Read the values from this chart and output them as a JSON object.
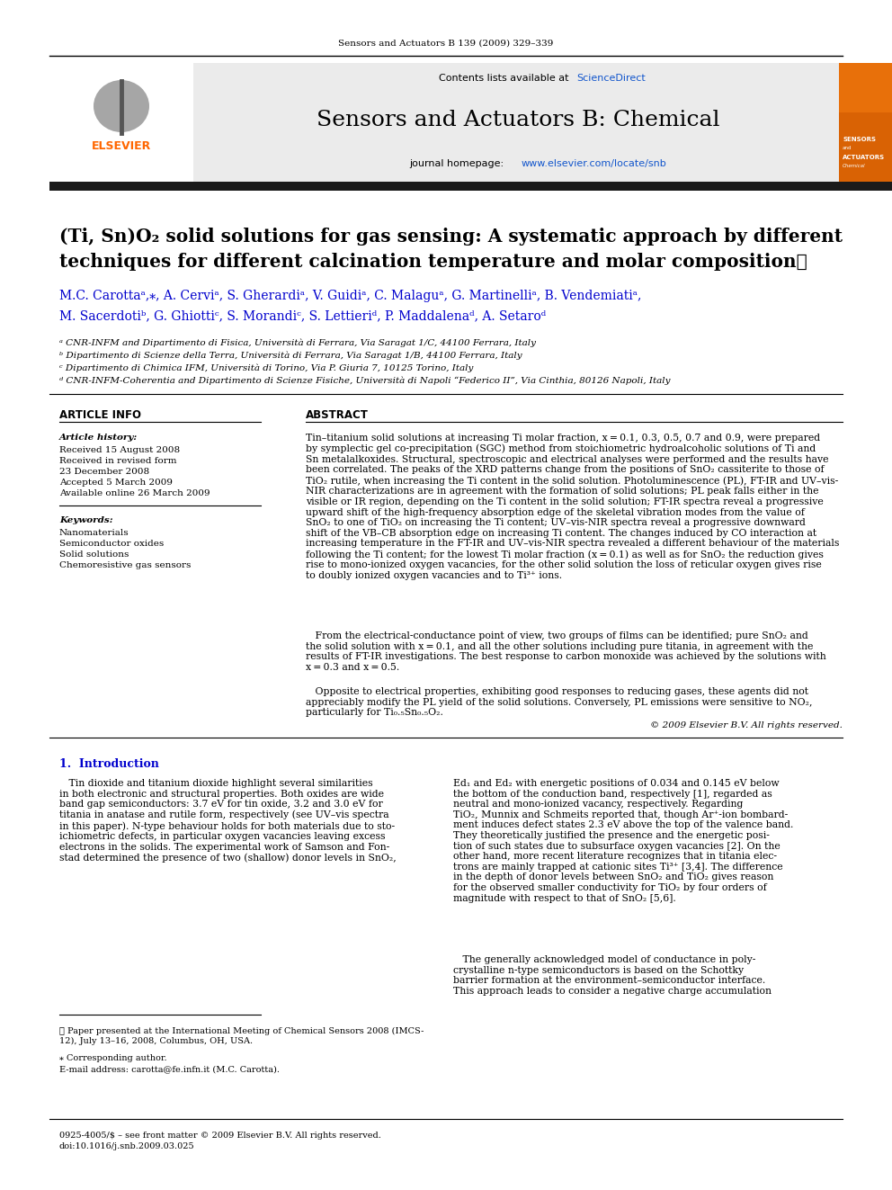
{
  "page_header": "Sensors and Actuators B 139 (2009) 329–339",
  "journal_name": "Sensors and Actuators B: Chemical",
  "contents_text": "Contents lists available at ScienceDirect",
  "journal_homepage": "journal homepage: www.elsevier.com/locate/snb",
  "article_title_line1": "(Ti, Sn)O₂ solid solutions for gas sensing: A systematic approach by different",
  "article_title_line2": "techniques for different calcination temperature and molar composition☆",
  "authors_line1": "M.C. Carottaᵃ,⁎, A. Cerviᵃ, S. Gherardiᵃ, V. Guidiᵃ, C. Malaguᵃ, G. Martinelliᵃ, B. Vendemiatiᵃ,",
  "authors_line2": "M. Sacerdotiᵇ, G. Ghiottiᶜ, S. Morandiᶜ, S. Lettieriᵈ, P. Maddalenaᵈ, A. Setaroᵈ",
  "affil_a": "ᵃ CNR-INFM and Dipartimento di Fisica, Università di Ferrara, Via Saragat 1/C, 44100 Ferrara, Italy",
  "affil_b": "ᵇ Dipartimento di Scienze della Terra, Università di Ferrara, Via Saragat 1/B, 44100 Ferrara, Italy",
  "affil_c": "ᶜ Dipartimento di Chimica IFM, Università di Torino, Via P. Giuria 7, 10125 Torino, Italy",
  "affil_d": "ᵈ CNR-INFM-Coherentia and Dipartimento di Scienze Fisiche, Università di Napoli “Federico II”, Via Cinthia, 80126 Napoli, Italy",
  "article_info_title": "ARTICLE INFO",
  "abstract_title": "ABSTRACT",
  "article_history_label": "Article history:",
  "received1": "Received 15 August 2008",
  "received_revised": "Received in revised form",
  "received_revised2": "23 December 2008",
  "accepted": "Accepted 5 March 2009",
  "available": "Available online 26 March 2009",
  "keywords_label": "Keywords:",
  "kw1": "Nanomaterials",
  "kw2": "Semiconductor oxides",
  "kw3": "Solid solutions",
  "kw4": "Chemoresistive gas sensors",
  "abstract_p1": "Tin–titanium solid solutions at increasing Ti molar fraction, x = 0.1, 0.3, 0.5, 0.7 and 0.9, were prepared\nby symplectic gel co-precipitation (SGC) method from stoichiometric hydroalcoholic solutions of Ti and\nSn metalalkoxides. Structural, spectroscopic and electrical analyses were performed and the results have\nbeen correlated. The peaks of the XRD patterns change from the positions of SnO₂ cassiterite to those of\nTiO₂ rutile, when increasing the Ti content in the solid solution. Photoluminescence (PL), FT-IR and UV–vis-\nNIR characterizations are in agreement with the formation of solid solutions; PL peak falls either in the\nvisible or IR region, depending on the Ti content in the solid solution; FT-IR spectra reveal a progressive\nupward shift of the high-frequency absorption edge of the skeletal vibration modes from the value of\nSnO₂ to one of TiO₂ on increasing the Ti content; UV–vis-NIR spectra reveal a progressive downward\nshift of the VB–CB absorption edge on increasing Ti content. The changes induced by CO interaction at\nincreasing temperature in the FT-IR and UV–vis-NIR spectra revealed a different behaviour of the materials\nfollowing the Ti content; for the lowest Ti molar fraction (x = 0.1) as well as for SnO₂ the reduction gives\nrise to mono-ionized oxygen vacancies, for the other solid solution the loss of reticular oxygen gives rise\nto doubly ionized oxygen vacancies and to Ti³⁺ ions.",
  "abstract_p2": "   From the electrical-conductance point of view, two groups of films can be identified; pure SnO₂ and\nthe solid solution with x = 0.1, and all the other solutions including pure titania, in agreement with the\nresults of FT-IR investigations. The best response to carbon monoxide was achieved by the solutions with\nx = 0.3 and x = 0.5.",
  "abstract_p3": "   Opposite to electrical properties, exhibiting good responses to reducing gases, these agents did not\nappreciably modify the PL yield of the solid solutions. Conversely, PL emissions were sensitive to NO₂,\nparticularly for Ti₀.₅Sn₀.₅O₂.",
  "copyright": "© 2009 Elsevier B.V. All rights reserved.",
  "intro_title": "1.  Introduction",
  "intro_col1_p1": "   Tin dioxide and titanium dioxide highlight several similarities\nin both electronic and structural properties. Both oxides are wide\nband gap semiconductors: 3.7 eV for tin oxide, 3.2 and 3.0 eV for\ntitania in anatase and rutile form, respectively (see UV–vis spectra\nin this paper). N-type behaviour holds for both materials due to sto-\nichiometric defects, in particular oxygen vacancies leaving excess\nelectrons in the solids. The experimental work of Samson and Fon-\nstad determined the presence of two (shallow) donor levels in SnO₂,",
  "intro_col2_p1": "Ed₁ and Ed₂ with energetic positions of 0.034 and 0.145 eV below\nthe bottom of the conduction band, respectively [1], regarded as\nneutral and mono-ionized vacancy, respectively. Regarding\nTiO₂, Munnix and Schmeits reported that, though Ar⁺-ion bombard-\nment induces defect states 2.3 eV above the top of the valence band.\nThey theoretically justified the presence and the energetic posi-\ntion of such states due to subsurface oxygen vacancies [2]. On the\nother hand, more recent literature recognizes that in titania elec-\ntrons are mainly trapped at cationic sites Ti³⁺ [3,4]. The difference\nin the depth of donor levels between SnO₂ and TiO₂ gives reason\nfor the observed smaller conductivity for TiO₂ by four orders of\nmagnitude with respect to that of SnO₂ [5,6].",
  "intro_col2_p2": "   The generally acknowledged model of conductance in poly-\ncrystalline n-type semiconductors is based on the Schottky\nbarrier formation at the environment–semiconductor interface.\nThis approach leads to consider a negative charge accumulation",
  "footnote_star": "☆ Paper presented at the International Meeting of Chemical Sensors 2008 (IMCS-\n12), July 13–16, 2008, Columbus, OH, USA.",
  "footnote_corresp": "⁎ Corresponding author.",
  "footnote_email": "E-mail address: carotta@fe.infn.it (M.C. Carotta).",
  "bottom_text_1": "0925-4005/$ – see front matter © 2009 Elsevier B.V. All rights reserved.",
  "bottom_text_2": "doi:10.1016/j.snb.2009.03.025",
  "bg_color": "#ffffff",
  "dark_bar_color": "#1a1a1a",
  "blue_link_color": "#1155CC",
  "orange_elsevier": "#FF6600",
  "title_color": "#000000",
  "text_color": "#000000",
  "blue_text": "#0000CD"
}
